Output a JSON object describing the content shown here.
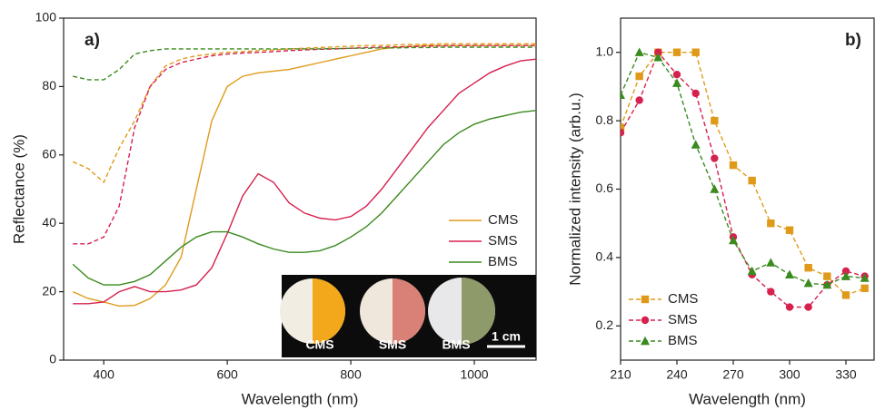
{
  "chart_data": [
    {
      "type": "line",
      "panel_label": "a)",
      "xlabel": "Wavelength (nm)",
      "ylabel": "Reflectance (%)",
      "xlim": [
        335,
        1100
      ],
      "ylim": [
        0,
        100
      ],
      "xticks": [
        400,
        600,
        800,
        1000
      ],
      "yticks": [
        0,
        20,
        40,
        60,
        80,
        100
      ],
      "legend": "center right",
      "x": [
        350,
        375,
        400,
        425,
        450,
        475,
        500,
        525,
        550,
        575,
        600,
        625,
        650,
        675,
        700,
        725,
        750,
        775,
        800,
        825,
        850,
        875,
        900,
        925,
        950,
        975,
        1000,
        1025,
        1050,
        1075,
        1100
      ],
      "series": [
        {
          "name": "CMS",
          "color": "#e09a1a",
          "values": [
            20,
            18,
            17,
            15.8,
            16,
            18,
            22,
            30,
            50,
            70,
            80,
            83,
            84,
            84.5,
            85,
            86,
            87,
            88,
            89,
            90,
            91,
            91.5,
            91.8,
            92,
            92,
            92,
            92,
            92,
            92,
            92,
            92
          ],
          "dashed_values": [
            58,
            56,
            52,
            62,
            70,
            80,
            86,
            88,
            89,
            89.5,
            90,
            90.2,
            90.5,
            90.7,
            91,
            91.2,
            91.4,
            91.6,
            91.8,
            92,
            92,
            92.2,
            92.3,
            92.4,
            92.5,
            92.5,
            92.5,
            92.5,
            92.5,
            92.5,
            92.5
          ]
        },
        {
          "name": "SMS",
          "color": "#d6204e",
          "values": [
            16.5,
            16.5,
            17,
            20,
            21.5,
            20,
            20,
            20.5,
            22,
            27,
            37,
            48,
            54.5,
            52,
            46,
            43,
            41.5,
            41,
            42,
            45,
            50,
            56,
            62,
            68,
            73,
            78,
            81,
            84,
            86,
            87.5,
            88
          ],
          "dashed_values": [
            34,
            34,
            36,
            45,
            68,
            80,
            85,
            87,
            88,
            89,
            89.5,
            89.8,
            90,
            90.2,
            90.5,
            90.7,
            90.9,
            91,
            91.2,
            91.4,
            91.5,
            91.6,
            91.7,
            91.8,
            91.9,
            92,
            92,
            92,
            92,
            92,
            92
          ]
        },
        {
          "name": "BMS",
          "color": "#3a8a1e",
          "values": [
            28,
            24,
            22,
            22,
            23,
            25,
            29,
            33,
            36,
            37.5,
            37.5,
            36,
            34,
            32.5,
            31.5,
            31.5,
            32,
            33.5,
            36,
            39,
            43,
            48,
            53,
            58,
            63,
            66.5,
            69,
            70.5,
            71.5,
            72.5,
            73
          ],
          "dashed_values": [
            83,
            82,
            82,
            85,
            89.5,
            90.5,
            91,
            91,
            91,
            91,
            91,
            91,
            91,
            91,
            91,
            91,
            91,
            91.1,
            91.2,
            91.2,
            91.3,
            91.3,
            91.4,
            91.4,
            91.5,
            91.5,
            91.5,
            91.5,
            91.5,
            91.5,
            91.5
          ]
        }
      ],
      "inset": {
        "labels": [
          "CMS",
          "SMS",
          "BMS"
        ],
        "scale_bar": "1 cm"
      }
    },
    {
      "type": "line",
      "panel_label": "b)",
      "xlabel": "Wavelength (nm)",
      "ylabel": "Normalized intensity (arb.u.)",
      "xlim": [
        210,
        345
      ],
      "ylim": [
        0.1,
        1.1
      ],
      "xticks": [
        210,
        240,
        270,
        300,
        330
      ],
      "yticks": [
        0.2,
        0.4,
        0.6,
        0.8,
        {
          "value": 1,
          "label": "1.0"
        }
      ],
      "legend": "lower left",
      "dashed": true,
      "x": [
        210,
        220,
        230,
        240,
        250,
        260,
        270,
        280,
        290,
        300,
        310,
        320,
        330,
        340
      ],
      "series": [
        {
          "name": "CMS",
          "color": "#e09a1a",
          "marker": "square",
          "values": [
            0.78,
            0.93,
            1.0,
            1.0,
            1.0,
            0.8,
            0.67,
            0.625,
            0.5,
            0.48,
            0.37,
            0.345,
            0.29,
            0.31
          ]
        },
        {
          "name": "SMS",
          "color": "#d6204e",
          "marker": "circle",
          "values": [
            0.765,
            0.86,
            1.0,
            0.935,
            0.88,
            0.69,
            0.46,
            0.35,
            0.3,
            0.255,
            0.255,
            0.32,
            0.36,
            0.345
          ]
        },
        {
          "name": "BMS",
          "color": "#3a8a1e",
          "marker": "triangle",
          "values": [
            0.875,
            1.0,
            0.985,
            0.91,
            0.73,
            0.6,
            0.45,
            0.36,
            0.385,
            0.35,
            0.325,
            0.32,
            0.345,
            0.34
          ]
        }
      ]
    }
  ]
}
